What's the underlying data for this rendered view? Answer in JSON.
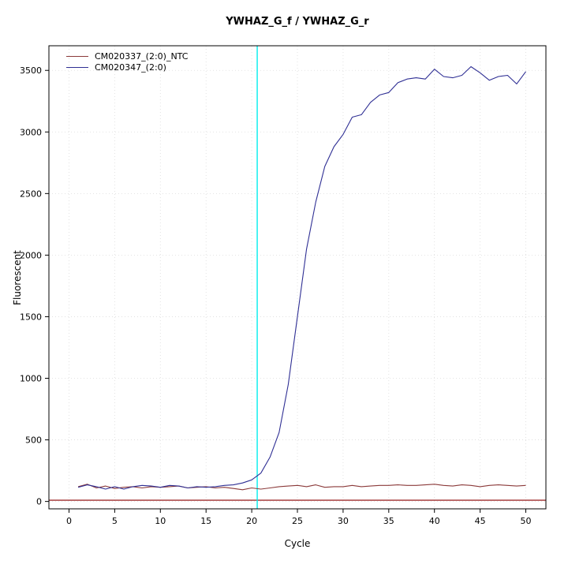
{
  "title": "YWHAZ_G_f / YWHAZ_G_r",
  "chart_data": {
    "type": "line",
    "title": "YWHAZ_G_f / YWHAZ_G_r",
    "xlabel": "Cycle",
    "ylabel": "Fluorescent",
    "xlim": [
      -2.2,
      52.2
    ],
    "ylim": [
      -60,
      3700
    ],
    "xticks": [
      0,
      5,
      10,
      15,
      20,
      25,
      30,
      35,
      40,
      45,
      50
    ],
    "yticks": [
      0,
      500,
      1000,
      1500,
      2000,
      2500,
      3000,
      3500
    ],
    "grid": true,
    "grid_color": "#dcdcdc",
    "legend_position": "top-left",
    "vline_x": 20.6,
    "vline_color": "#00eeee",
    "threshold_line_y": 10,
    "threshold_color": "#8b0000",
    "x": [
      1,
      2,
      3,
      4,
      5,
      6,
      7,
      8,
      9,
      10,
      11,
      12,
      13,
      14,
      15,
      16,
      17,
      18,
      19,
      20,
      21,
      22,
      23,
      24,
      25,
      26,
      27,
      28,
      29,
      30,
      31,
      32,
      33,
      34,
      35,
      36,
      37,
      38,
      39,
      40,
      41,
      42,
      43,
      44,
      45,
      46,
      47,
      48,
      49,
      50
    ],
    "series": [
      {
        "name": "CM020337_(2:0)_NTC",
        "color": "#8b3a3a",
        "values": [
          120,
          140,
          110,
          125,
          105,
          115,
          120,
          110,
          120,
          115,
          120,
          125,
          110,
          115,
          120,
          110,
          115,
          105,
          95,
          110,
          100,
          110,
          120,
          125,
          130,
          120,
          135,
          115,
          120,
          120,
          130,
          120,
          125,
          130,
          130,
          135,
          130,
          130,
          135,
          140,
          130,
          125,
          135,
          130,
          120,
          130,
          135,
          130,
          125,
          130
        ]
      },
      {
        "name": "CM020347_(2:0)",
        "color": "#2f2f94",
        "values": [
          115,
          135,
          120,
          100,
          120,
          100,
          120,
          130,
          125,
          115,
          130,
          125,
          110,
          120,
          115,
          120,
          130,
          135,
          150,
          175,
          230,
          360,
          560,
          950,
          1500,
          2050,
          2430,
          2720,
          2880,
          2980,
          3120,
          3140,
          3240,
          3300,
          3320,
          3400,
          3430,
          3440,
          3430,
          3510,
          3450,
          3440,
          3460,
          3530,
          3480,
          3420,
          3450,
          3460,
          3390,
          3490
        ]
      }
    ]
  }
}
